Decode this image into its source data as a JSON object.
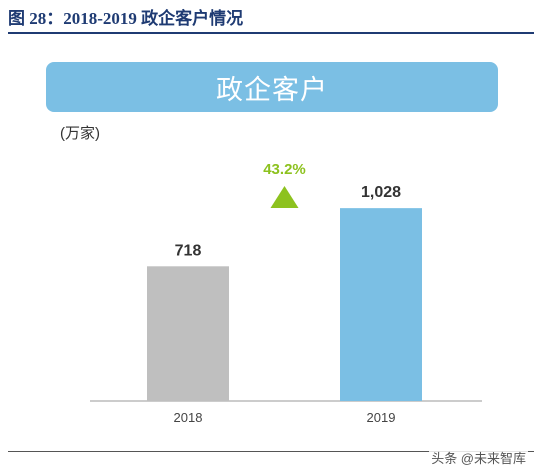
{
  "figure": {
    "title": "图 28：2018-2019 政企客户情况",
    "banner": "政企客户",
    "unit": "(万家)",
    "watermark": "头条 @未来智库"
  },
  "colors": {
    "title": "#1f3b73",
    "banner": "#7bbfe4",
    "bar_2018": "#bfbfbf",
    "bar_2019": "#7bbfe4",
    "growth": "#8dc21f"
  },
  "chart_data": {
    "type": "bar",
    "title": "政企客户",
    "ylabel": "(万家)",
    "xlabel": "",
    "categories": [
      "2018",
      "2019"
    ],
    "values": [
      718,
      1028
    ],
    "data_labels": [
      "718",
      "1,028"
    ],
    "ylim": [
      0,
      1130
    ],
    "grid": false,
    "legend": "none",
    "annotation": {
      "text": "43.2%",
      "marker": "up-triangle-icon"
    }
  }
}
